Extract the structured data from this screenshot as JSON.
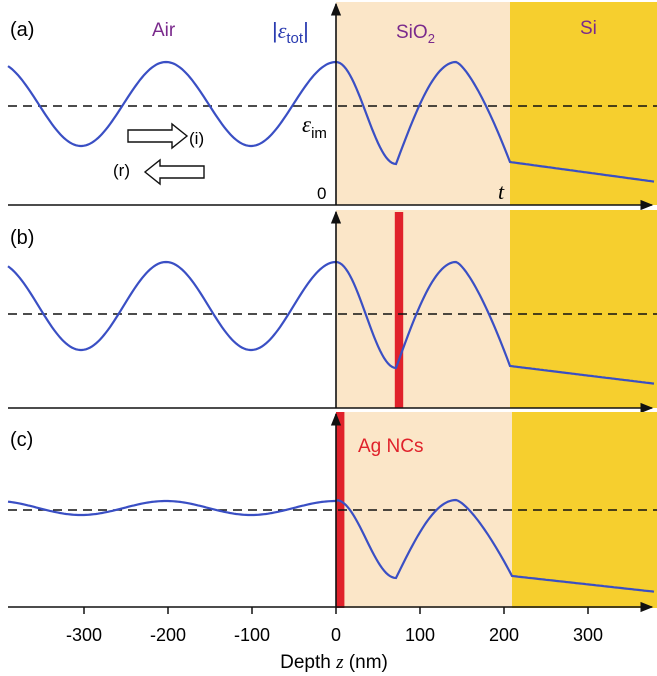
{
  "colors": {
    "curve": "#3a4fc4",
    "sio2_fill": "#fbe6c8",
    "si_fill": "#f6cf2e",
    "ag_bar": "#e0222b",
    "air_label": "#7a2a8c",
    "sio2_label": "#7a2a8c",
    "si_label": "#7a2a8c",
    "eps_tot_label": "#2a3bb0",
    "ag_label": "#e0222b",
    "axis": "#111111"
  },
  "panels": [
    {
      "tag": "(a)",
      "labels": {
        "air": "Air",
        "eps_tot_bar_left": "|",
        "eps_tot_symbol": "ε",
        "eps_tot_sub": "tot",
        "eps_tot_bar_right": "|",
        "sio2_main": "SiO",
        "sio2_sub": "2",
        "si": "Si",
        "eps_im_symbol": "ε",
        "eps_im_sub": "im",
        "zero": "0",
        "t": "t",
        "incident": "(i)",
        "reflected": "(r)"
      },
      "ag_bar": null
    },
    {
      "tag": "(b)",
      "labels": {},
      "ag_bar": {
        "z_from": 70,
        "z_to": 80
      }
    },
    {
      "tag": "(c)",
      "labels": {
        "ag": "Ag NCs"
      },
      "ag_bar": {
        "z_from": 0,
        "z_to": 10
      }
    }
  ],
  "x_axis": {
    "title_prefix": "Depth ",
    "title_var": "z",
    "title_suffix": " (nm)",
    "ticks": [
      {
        "value": -300,
        "label": "-300"
      },
      {
        "value": -200,
        "label": "-200"
      },
      {
        "value": -100,
        "label": "-100"
      },
      {
        "value": 0,
        "label": "0"
      },
      {
        "value": 100,
        "label": "100"
      },
      {
        "value": 200,
        "label": "200"
      },
      {
        "value": 300,
        "label": "300"
      }
    ]
  }
}
